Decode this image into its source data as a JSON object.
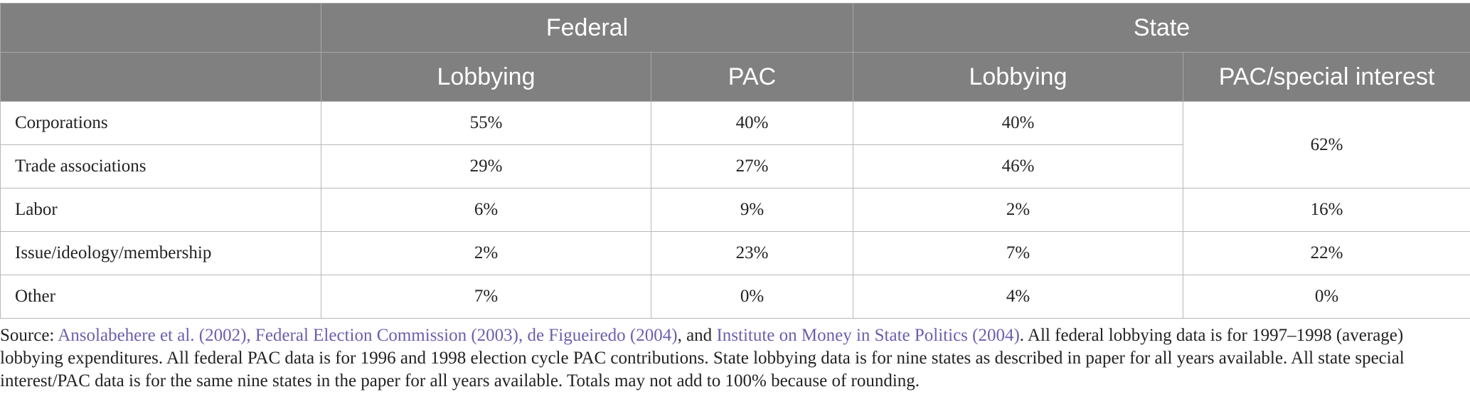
{
  "table": {
    "group_headers": [
      {
        "label": "",
        "span": 1
      },
      {
        "label": "Federal",
        "span": 2
      },
      {
        "label": "State",
        "span": 2
      }
    ],
    "column_headers": [
      "",
      "Lobbying",
      "PAC",
      "Lobbying",
      "PAC/special interest"
    ],
    "rows": [
      {
        "label": "Corporations",
        "federal_lobbying": "55%",
        "federal_pac": "40%",
        "state_lobbying": "40%",
        "state_pac_special": "62%"
      },
      {
        "label": "Trade associations",
        "federal_lobbying": "29%",
        "federal_pac": "27%",
        "state_lobbying": "46%"
      },
      {
        "label": "Labor",
        "federal_lobbying": "6%",
        "federal_pac": "9%",
        "state_lobbying": "2%",
        "state_pac_special": "16%"
      },
      {
        "label": "Issue/ideology/membership",
        "federal_lobbying": "2%",
        "federal_pac": "23%",
        "state_lobbying": "7%",
        "state_pac_special": "22%"
      },
      {
        "label": "Other",
        "federal_lobbying": "7%",
        "federal_pac": "0%",
        "state_lobbying": "4%",
        "state_pac_special": "0%"
      }
    ]
  },
  "footnote": {
    "prefix": "Source: ",
    "citation_1": "Ansolabehere et al. (2002), Federal Election Commission (2003), de Figueiredo (2004)",
    "conjunction": ", and ",
    "citation_2": "Institute on Money in State Politics (2004)",
    "body": ". All federal lobbying data is for 1997–1998 (average) lobbying expenditures. All federal PAC data is for 1996 and 1998 election cycle PAC contributions. State lobbying data is for nine states as described in paper for all years available. All state special interest/PAC data is for the same nine states in the paper for all years available. Totals may not add to 100% because of rounding."
  },
  "colors": {
    "header_bg": "#808080",
    "header_text": "#ffffff",
    "link": "#6a5fad"
  }
}
